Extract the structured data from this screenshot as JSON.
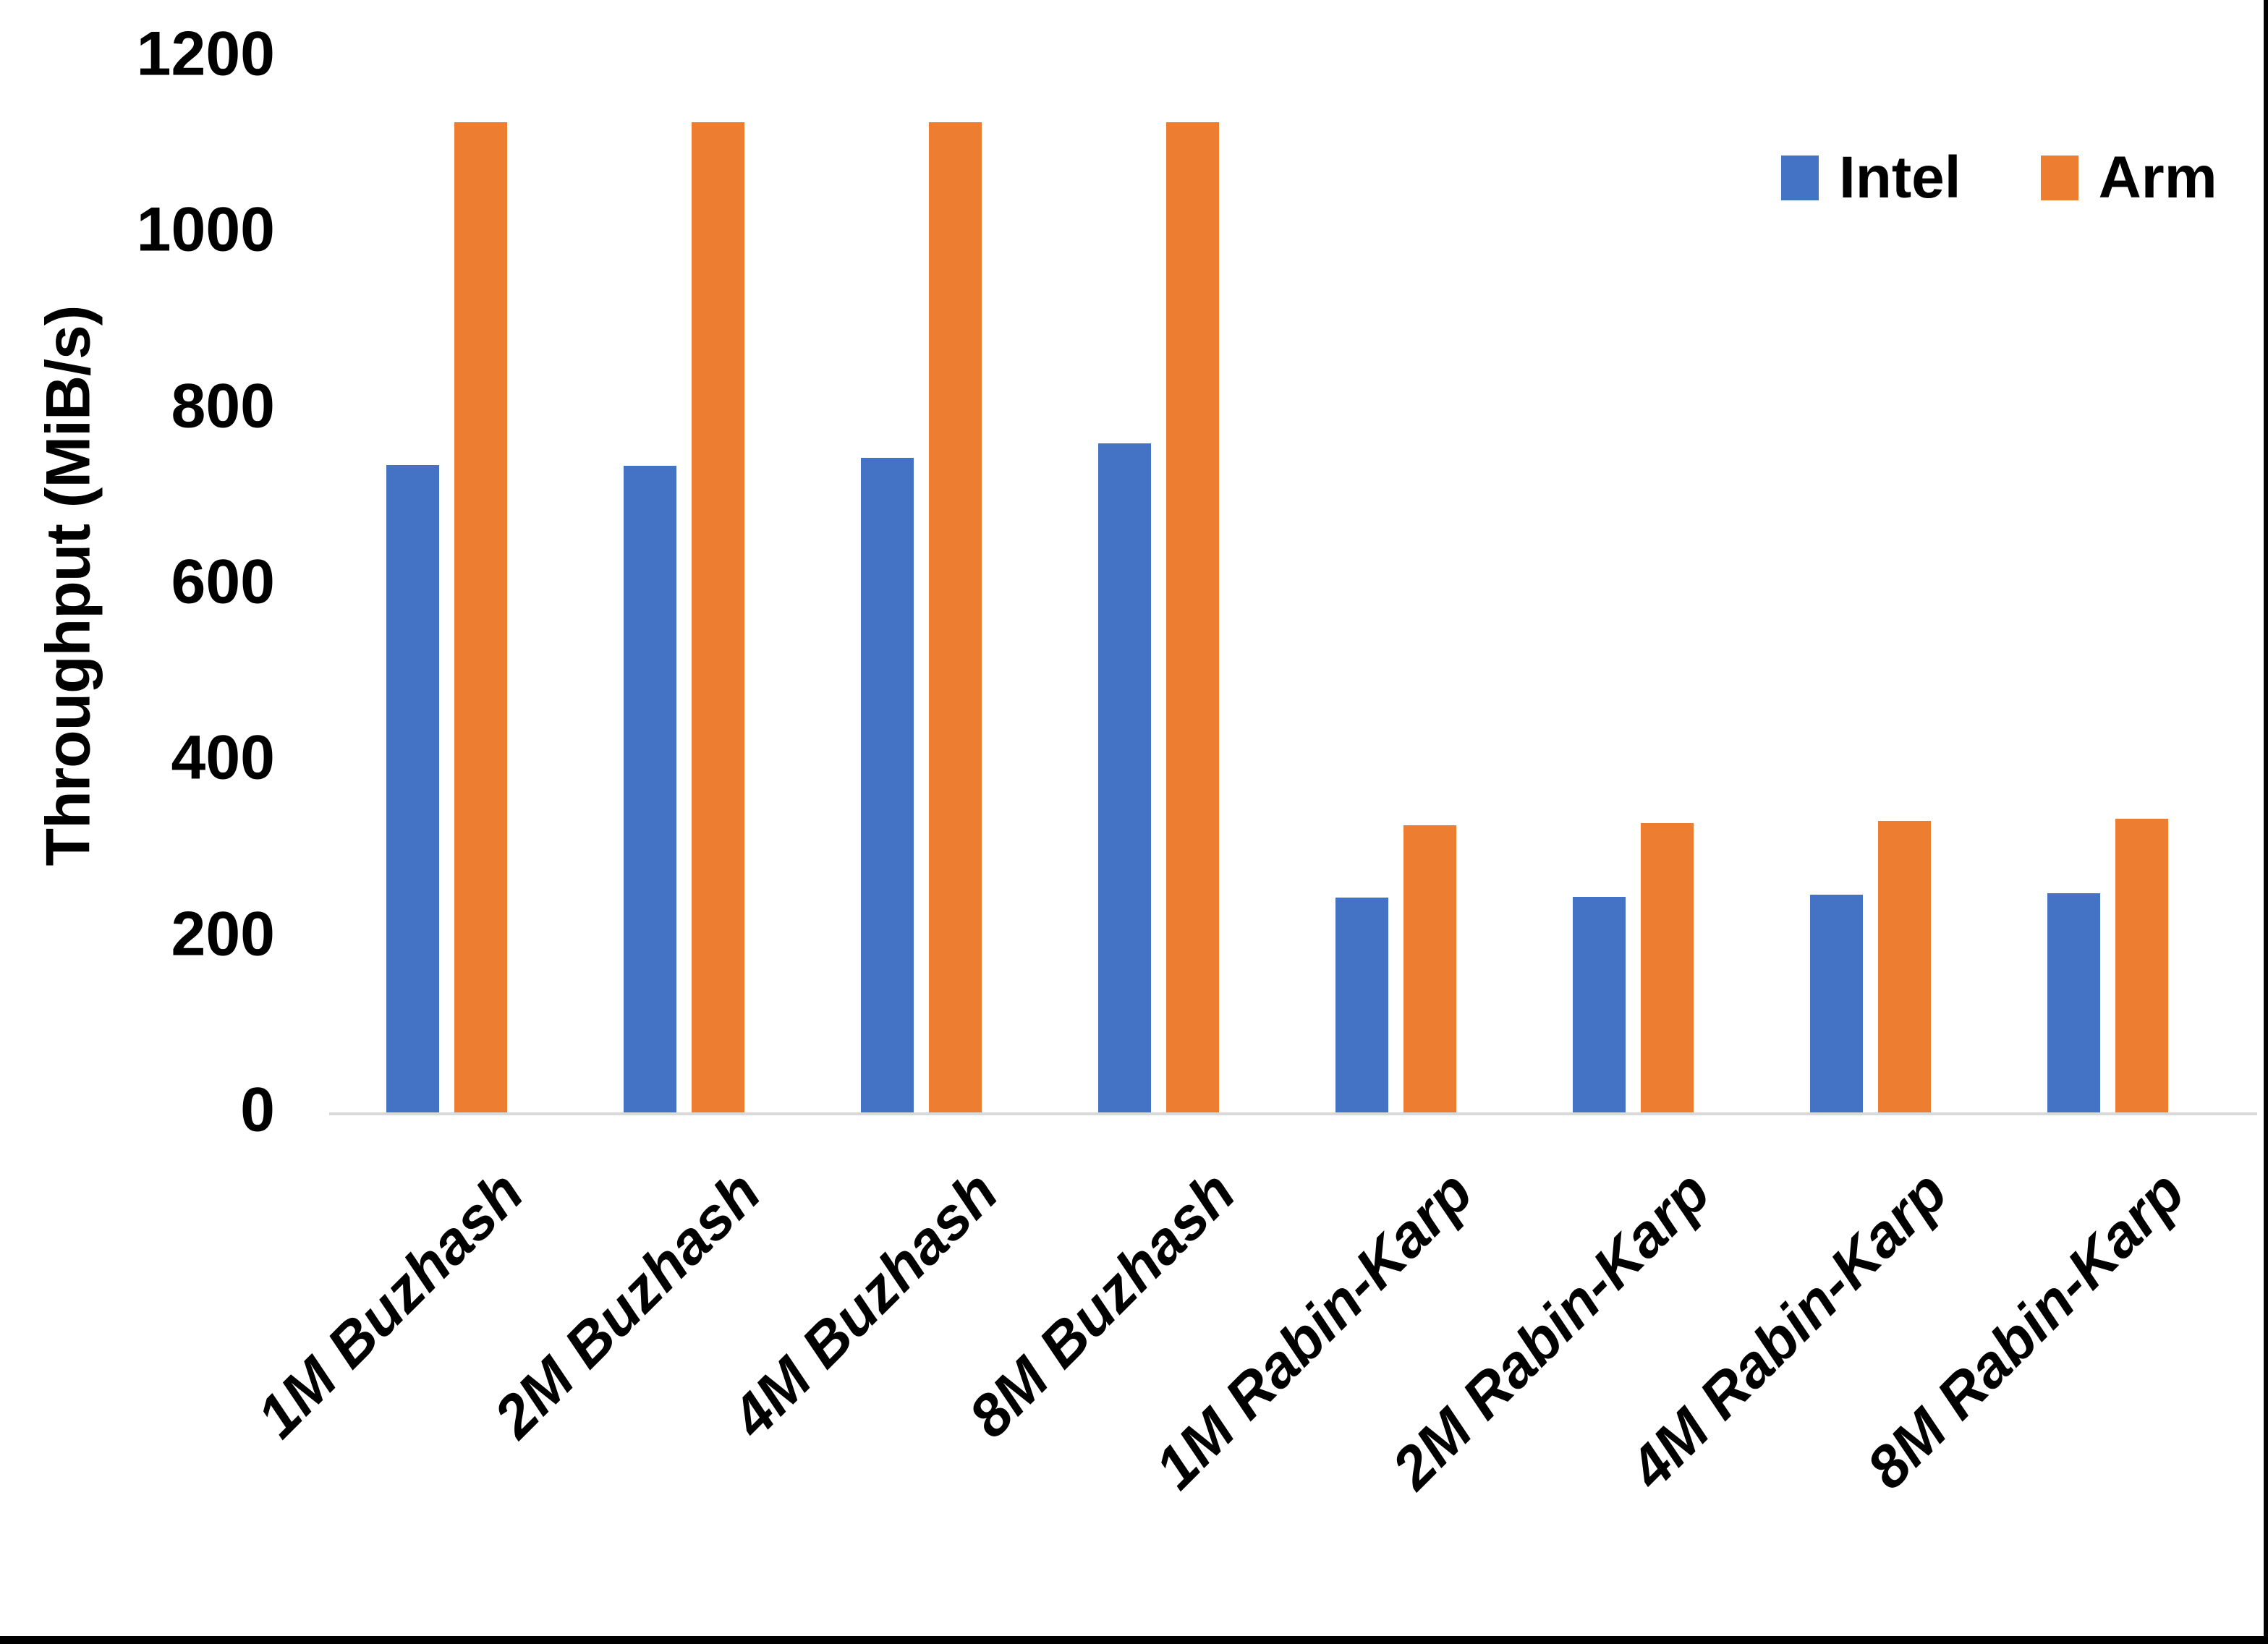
{
  "chart_data": {
    "type": "bar",
    "title": "",
    "xlabel": "",
    "ylabel": "Throughput (MiB/s)",
    "categories": [
      "1M Buzhash",
      "2M Buzhash",
      "4M Buzhash",
      "8M Buzhash",
      "1M Rabin-Karp",
      "2M Rabin-Karp",
      "4M Rabin-Karp",
      "8M Rabin-Karp"
    ],
    "series": [
      {
        "name": "Intel",
        "color": "#4472C4",
        "values": [
          736,
          735,
          744,
          760,
          244,
          245,
          247,
          249
        ]
      },
      {
        "name": "Arm",
        "color": "#ED7D31",
        "values": [
          1125,
          1125,
          1125,
          1125,
          326,
          329,
          331,
          334
        ]
      }
    ],
    "ylim": [
      0,
      1200
    ],
    "ytick_step": 200,
    "ytick_labels": [
      "0",
      "200",
      "400",
      "600",
      "800",
      "1000",
      "1200"
    ],
    "grid": false,
    "legend_position": "top-right",
    "axis_line_color": "#d9d9d9",
    "background_color": "#ffffff"
  }
}
